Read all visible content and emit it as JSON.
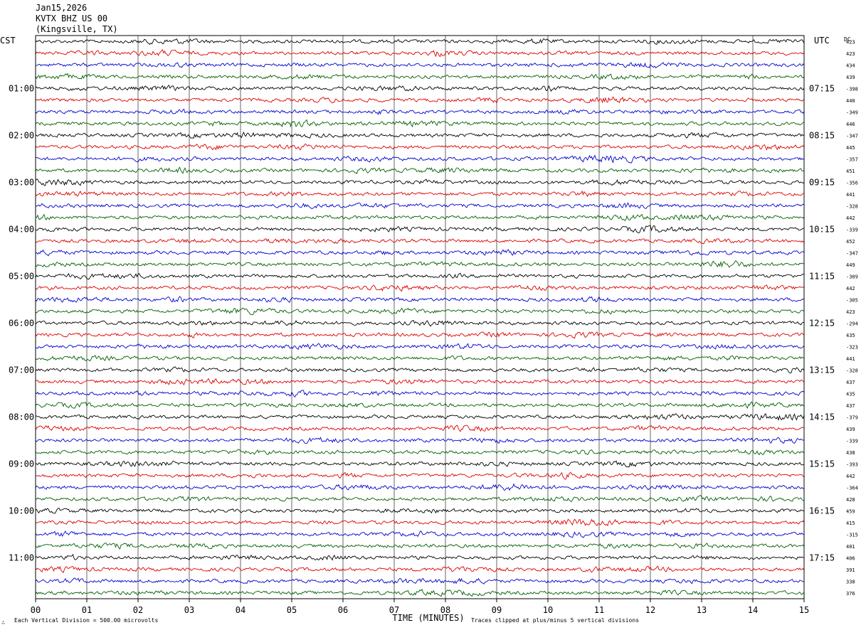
{
  "header": {
    "date": "Jan15,2026",
    "station": "KVTX BHZ US 00",
    "location": "(Kingsville, TX)"
  },
  "left_timezone": "CST",
  "right_timezone": "UTC",
  "dc_label": "DC",
  "footer": {
    "scale_text": "Each Vertical Division =  500.00 microvolts",
    "clip_text": "Traces clipped at plus/minus 5 vertical divisions",
    "corner_mark": "∴"
  },
  "chart_data": {
    "type": "line",
    "title": "",
    "xlabel": "TIME (MINUTES)",
    "ylabel": "",
    "xlim": [
      0,
      15
    ],
    "x_tick_labels": [
      "00",
      "01",
      "02",
      "03",
      "04",
      "05",
      "06",
      "07",
      "08",
      "09",
      "10",
      "11",
      "12",
      "13",
      "14",
      "15"
    ],
    "left_time_labels": [
      "01:00",
      "02:00",
      "03:00",
      "04:00",
      "05:00",
      "06:00",
      "07:00",
      "08:00",
      "09:00",
      "10:00",
      "11:00"
    ],
    "right_time_labels": [
      "07:15",
      "08:15",
      "09:15",
      "10:15",
      "11:15",
      "12:15",
      "13:15",
      "14:15",
      "15:15",
      "16:15",
      "17:15"
    ],
    "trace_count": 48,
    "trace_minutes": 15,
    "trace_colors": [
      "#000000",
      "#e00000",
      "#0000d0",
      "#006000"
    ],
    "dc_offsets": [
      "423",
      "423",
      "434",
      "439",
      "-398",
      "440",
      "-349",
      "446",
      "-347",
      "445",
      "-357",
      "451",
      "-356",
      "441",
      "-328",
      "442",
      "-339",
      "452",
      "-347",
      "449",
      "-309",
      "442",
      "-305",
      "423",
      "-294",
      "435",
      "-323",
      "441",
      "-328",
      "437",
      "435",
      "437",
      "-379",
      "439",
      "-339",
      "438",
      "-393",
      "442",
      "-364",
      "428",
      "459",
      "415",
      "-315",
      "401",
      "406",
      "391",
      "338",
      "376"
    ],
    "clip_divisions": 5,
    "microvolts_per_division": 500.0
  }
}
